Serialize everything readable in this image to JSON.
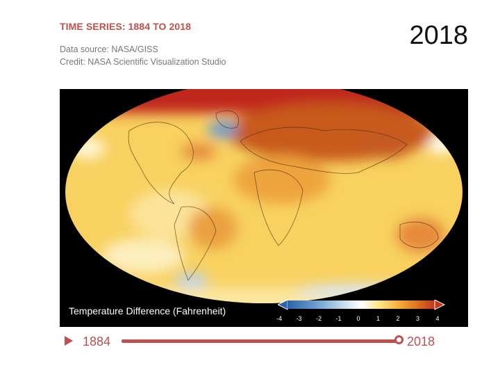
{
  "header": {
    "title": "TIME SERIES: 1884 TO 2018",
    "source": "Data source: NASA/GISS",
    "credit": "Credit: NASA Scientific Visualization Studio",
    "current_year": "2018"
  },
  "legend": {
    "title": "Temperature Difference (Fahrenheit)",
    "ticks": [
      "-4",
      "-3",
      "-2",
      "-1",
      "0",
      "1",
      "2",
      "3",
      "4"
    ],
    "colors": [
      "#2b63a6",
      "#6fa0cf",
      "#c7ddee",
      "#ffffff",
      "#fde68a",
      "#f5b13a",
      "#e0711f",
      "#c0391b"
    ]
  },
  "timeline": {
    "start_label": "1884",
    "end_label": "2018",
    "progress": 1.0
  },
  "colors": {
    "accent": "#c0504d"
  }
}
